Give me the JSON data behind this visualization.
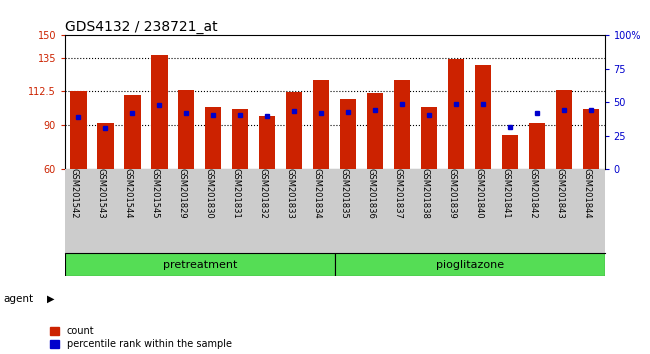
{
  "title": "GDS4132 / 238721_at",
  "categories": [
    "GSM201542",
    "GSM201543",
    "GSM201544",
    "GSM201545",
    "GSM201829",
    "GSM201830",
    "GSM201831",
    "GSM201832",
    "GSM201833",
    "GSM201834",
    "GSM201835",
    "GSM201836",
    "GSM201837",
    "GSM201838",
    "GSM201839",
    "GSM201840",
    "GSM201841",
    "GSM201842",
    "GSM201843",
    "GSM201844"
  ],
  "bar_values": [
    112.5,
    91.0,
    110.0,
    136.5,
    113.5,
    101.5,
    100.5,
    95.5,
    112.0,
    120.0,
    107.0,
    111.5,
    120.0,
    101.5,
    134.0,
    130.0,
    83.0,
    91.0,
    113.0,
    100.5
  ],
  "dot_values": [
    95.0,
    88.0,
    98.0,
    103.0,
    98.0,
    96.5,
    96.5,
    95.5,
    99.0,
    98.0,
    98.5,
    99.5,
    103.5,
    96.5,
    103.5,
    103.5,
    88.5,
    97.5,
    99.5,
    99.5
  ],
  "bar_color": "#cc2200",
  "dot_color": "#0000cc",
  "ylim_left": [
    60,
    150
  ],
  "ylim_right": [
    0,
    100
  ],
  "yticks_left": [
    60,
    90,
    112.5,
    135,
    150
  ],
  "yticks_right": [
    0,
    25,
    50,
    75,
    100
  ],
  "ytick_labels_left": [
    "60",
    "90",
    "112.5",
    "135",
    "150"
  ],
  "ytick_labels_right": [
    "0",
    "25",
    "50",
    "75",
    "100%"
  ],
  "grid_lines": [
    90,
    112.5,
    135
  ],
  "pretreatment_label": "pretreatment",
  "pioglitazone_label": "pioglitazone",
  "agent_label": "agent",
  "pretreatment_indices": [
    0,
    1,
    2,
    3,
    4,
    5,
    6,
    7,
    8,
    9
  ],
  "pioglitazone_indices": [
    10,
    11,
    12,
    13,
    14,
    15,
    16,
    17,
    18,
    19
  ],
  "pretreatment_color": "#aaeaaa",
  "pioglitazone_color": "#55dd55",
  "legend_count_label": "count",
  "legend_pct_label": "percentile rank within the sample",
  "bar_width": 0.6,
  "xtick_bg_color": "#cccccc",
  "title_fontsize": 10,
  "tick_label_fontsize": 7,
  "group_label_fontsize": 8
}
